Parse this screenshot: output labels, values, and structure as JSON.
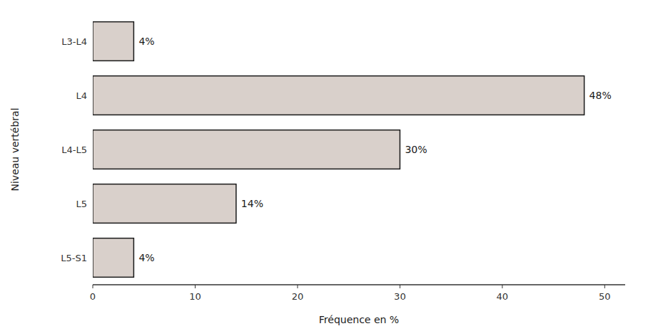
{
  "chart_data": {
    "type": "bar",
    "orientation": "horizontal",
    "categories": [
      "L3-L4",
      "L4",
      "L4-L5",
      "L5",
      "L5-S1"
    ],
    "values": [
      4,
      48,
      30,
      14,
      4
    ],
    "value_labels": [
      "4%",
      "48%",
      "30%",
      "14%",
      "4%"
    ],
    "data_labels": true,
    "color": "#d9d0cb",
    "xlabel": "Fréquence en %",
    "ylabel": "Niveau vertébral",
    "xlim": [
      0,
      52
    ],
    "xticks": [
      0,
      10,
      20,
      30,
      40,
      50
    ],
    "grid": false
  }
}
